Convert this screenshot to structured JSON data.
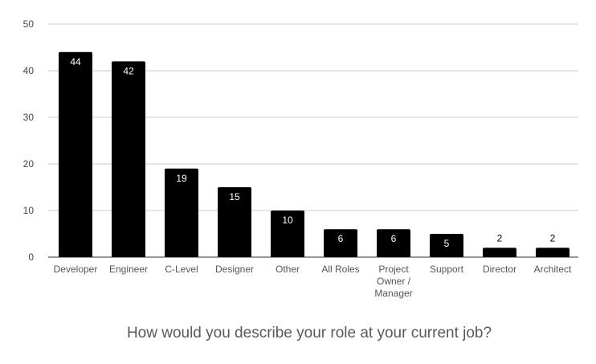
{
  "chart_data": {
    "type": "bar",
    "title": "How would you describe your role at your current job?",
    "xlabel": "",
    "ylabel": "",
    "categories": [
      "Developer",
      "Engineer",
      "C-Level",
      "Designer",
      "Other",
      "All Roles",
      "Project Owner / Manager",
      "Support",
      "Director",
      "Architect"
    ],
    "values": [
      44,
      42,
      19,
      15,
      10,
      6,
      6,
      5,
      2,
      2
    ],
    "ylim": [
      0,
      50
    ],
    "yticks": [
      0,
      10,
      20,
      30,
      40,
      50
    ],
    "grid": true,
    "legend": "none",
    "bar_color": "#000000",
    "data_labels": true
  }
}
